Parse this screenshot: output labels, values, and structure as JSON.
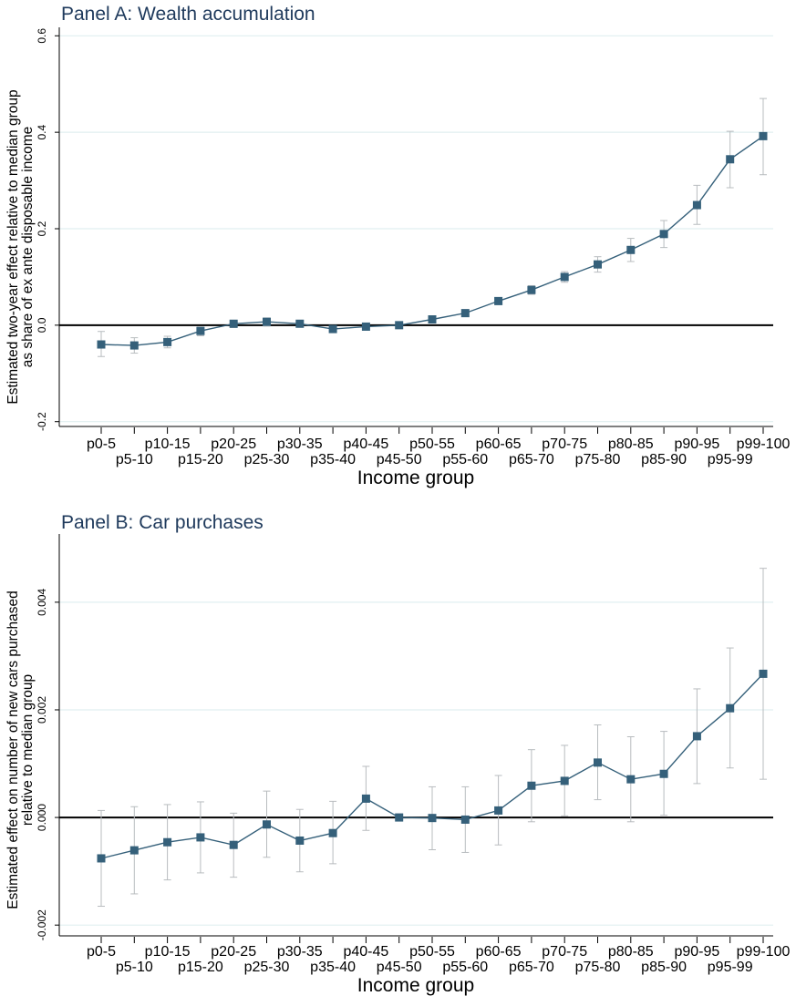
{
  "colors": {
    "series": "#35607a",
    "errorbar": "#b8bcbf",
    "grid": "#e0eff0",
    "zero": "#000000",
    "title": "#1f3a5c"
  },
  "categories": [
    "p0-5",
    "p5-10",
    "p10-15",
    "p15-20",
    "p20-25",
    "p25-30",
    "p30-35",
    "p35-40",
    "p40-45",
    "p45-50",
    "p50-55",
    "p55-60",
    "p60-65",
    "p65-70",
    "p70-75",
    "p75-80",
    "p80-85",
    "p85-90",
    "p90-95",
    "p95-99",
    "p99-100"
  ],
  "chart_data": [
    {
      "type": "line",
      "title": "Panel A: Wealth accumulation",
      "xlabel": "Income group",
      "ylabel_lines": [
        "Estimated two-year effect relative to median group",
        "as share of ex ante disposable income"
      ],
      "ylim": [
        -0.21,
        0.61
      ],
      "yticks": [
        -0.2,
        0,
        0.2,
        0.4,
        0.6
      ],
      "ytick_labels": [
        "-0.2",
        "0.0",
        "0.2",
        "0.4",
        "0.6"
      ],
      "grid": true,
      "zero_line": true,
      "values": [
        -0.04,
        -0.042,
        -0.035,
        -0.012,
        0.003,
        0.007,
        0.003,
        -0.008,
        -0.003,
        0.0,
        0.012,
        0.025,
        0.05,
        0.073,
        0.1,
        0.126,
        0.156,
        0.189,
        0.249,
        0.344,
        0.392
      ],
      "ci_low": [
        -0.065,
        -0.058,
        -0.047,
        -0.022,
        -0.005,
        -0.002,
        -0.004,
        -0.014,
        -0.009,
        0.0,
        0.006,
        0.019,
        0.043,
        0.064,
        0.089,
        0.11,
        0.132,
        0.161,
        0.209,
        0.285,
        0.312
      ],
      "ci_high": [
        -0.013,
        -0.026,
        -0.023,
        -0.004,
        0.01,
        0.015,
        0.009,
        -0.002,
        0.003,
        0.0,
        0.018,
        0.031,
        0.057,
        0.082,
        0.111,
        0.142,
        0.18,
        0.217,
        0.29,
        0.402,
        0.47
      ]
    },
    {
      "type": "line",
      "title": "Panel B: Car purchases",
      "xlabel": "Income group",
      "ylabel_lines": [
        "Estimated effect on number of new cars purchased",
        "relative to median group"
      ],
      "ylim": [
        -0.0022,
        0.0052
      ],
      "yticks": [
        -0.002,
        0,
        0.002,
        0.004
      ],
      "ytick_labels": [
        "-0.002",
        "0.000",
        "0.002",
        "0.004"
      ],
      "grid": true,
      "zero_line": true,
      "values": [
        -0.00076,
        -0.00061,
        -0.00046,
        -0.00037,
        -0.00051,
        -0.00013,
        -0.00043,
        -0.00029,
        0.00035,
        0.0,
        -1e-05,
        -4e-05,
        0.00013,
        0.00059,
        0.00068,
        0.00102,
        0.00071,
        0.00081,
        0.00151,
        0.00203,
        0.00267
      ],
      "ci_low": [
        -0.00165,
        -0.00142,
        -0.00116,
        -0.00103,
        -0.00111,
        -0.00074,
        -0.00101,
        -0.00086,
        -0.00024,
        0.0,
        -0.0006,
        -0.00065,
        -0.00051,
        -8e-05,
        3e-05,
        0.00033,
        -8e-05,
        4e-05,
        0.00063,
        0.00092,
        0.00071
      ],
      "ci_high": [
        0.00013,
        0.0002,
        0.00024,
        0.00029,
        8e-05,
        0.00049,
        0.00015,
        0.0003,
        0.00095,
        0.0,
        0.00057,
        0.00057,
        0.00078,
        0.00126,
        0.00134,
        0.00172,
        0.0015,
        0.0016,
        0.00239,
        0.00315,
        0.00463
      ]
    }
  ]
}
